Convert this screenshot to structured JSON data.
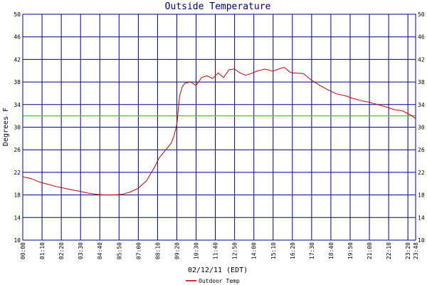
{
  "chart_data": {
    "type": "line",
    "title": "Outside Temperature",
    "xlabel": "02/12/11 (EDT)",
    "ylabel": "Degrees F",
    "ylim": [
      10,
      50
    ],
    "yticks": [
      10,
      14,
      18,
      22,
      26,
      30,
      34,
      38,
      42,
      46,
      50
    ],
    "xlim_minutes": [
      0,
      1428
    ],
    "xticks": [
      "00:00",
      "01:10",
      "02:20",
      "03:30",
      "04:40",
      "05:50",
      "07:00",
      "08:10",
      "09:20",
      "10:30",
      "11:40",
      "12:50",
      "14:00",
      "15:10",
      "16:20",
      "17:30",
      "18:40",
      "19:50",
      "21:00",
      "22:10",
      "23:20",
      "23:48"
    ],
    "grid": true,
    "reference_line": {
      "value": 32,
      "color": "#33cc33"
    },
    "colors": {
      "axes": "#000088",
      "grid": "#000088",
      "series": "#cc0000",
      "title": "#000088"
    },
    "legend": {
      "position": "bottom-left",
      "label": "Outdoor Temp"
    },
    "series": [
      {
        "name": "Outdoor Temp",
        "color": "#cc0000",
        "x_time": [
          "00:00",
          "00:30",
          "01:00",
          "01:30",
          "02:00",
          "02:30",
          "03:00",
          "03:30",
          "04:00",
          "04:30",
          "05:00",
          "05:30",
          "06:00",
          "06:30",
          "07:00",
          "07:30",
          "08:00",
          "08:15",
          "08:40",
          "09:00",
          "09:10",
          "09:20",
          "09:30",
          "09:40",
          "09:50",
          "10:10",
          "10:30",
          "10:50",
          "11:10",
          "11:30",
          "11:50",
          "12:10",
          "12:30",
          "12:50",
          "13:10",
          "13:30",
          "13:50",
          "14:10",
          "14:40",
          "15:10",
          "15:30",
          "15:50",
          "16:10",
          "16:20",
          "17:00",
          "17:30",
          "18:00",
          "18:30",
          "19:00",
          "19:30",
          "20:00",
          "20:30",
          "21:00",
          "21:30",
          "22:00",
          "22:30",
          "23:00",
          "23:20",
          "23:35",
          "23:48"
        ],
        "values": [
          21.2,
          20.9,
          20.3,
          19.9,
          19.5,
          19.2,
          18.9,
          18.6,
          18.3,
          18.1,
          18.0,
          18.0,
          18.1,
          18.5,
          19.2,
          20.5,
          23.0,
          24.5,
          26.0,
          27.2,
          28.5,
          30.5,
          35.5,
          37.2,
          37.8,
          38.0,
          37.4,
          38.8,
          39.1,
          38.6,
          39.6,
          38.8,
          40.2,
          40.3,
          39.6,
          39.2,
          39.5,
          39.9,
          40.3,
          39.9,
          40.3,
          40.6,
          39.8,
          39.6,
          39.5,
          38.3,
          37.4,
          36.6,
          35.9,
          35.6,
          35.1,
          34.7,
          34.4,
          34.0,
          33.6,
          33.1,
          32.9,
          32.4,
          32.0,
          31.5
        ]
      }
    ]
  }
}
